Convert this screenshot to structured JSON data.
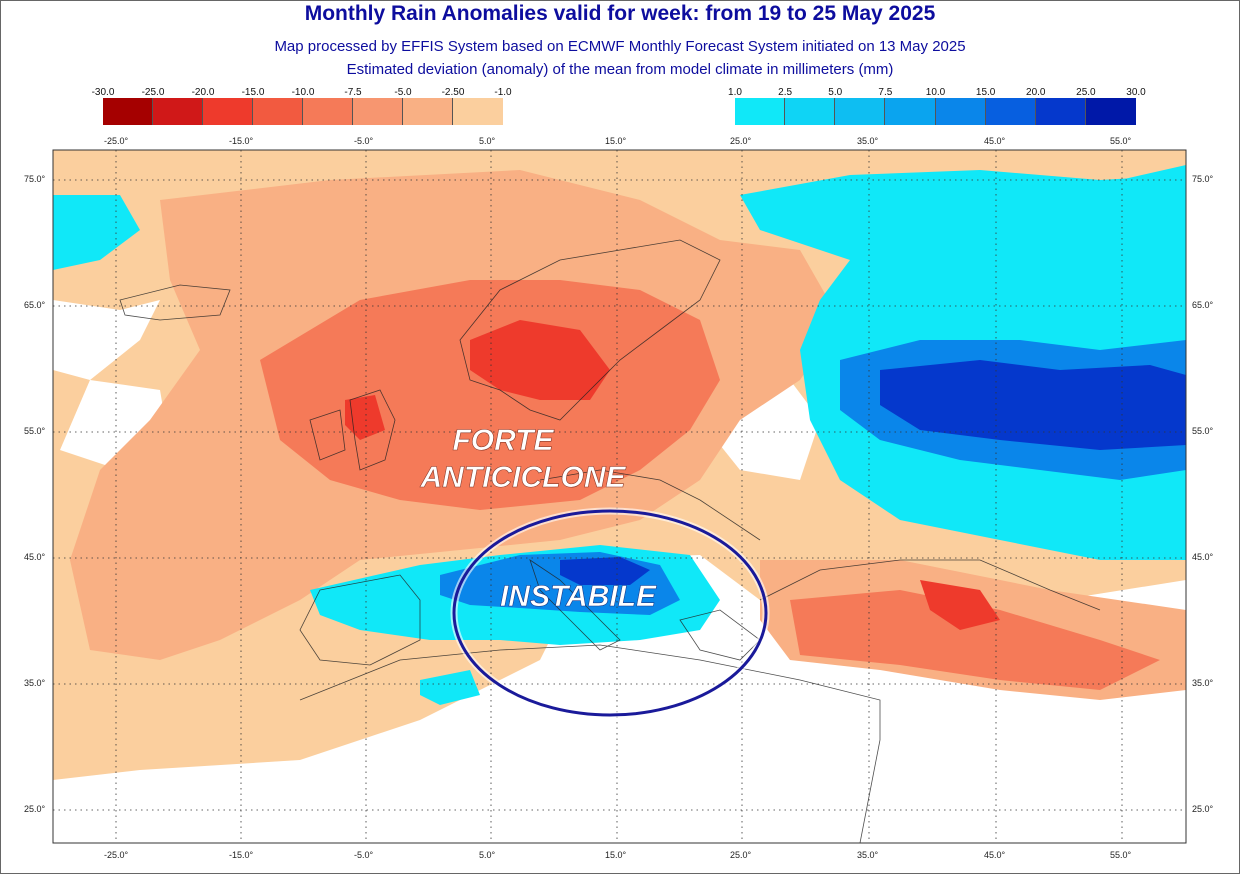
{
  "header": {
    "title": "Monthly Rain Anomalies valid for week: from 19 to 25 May 2025",
    "subtitle1": "Map processed by EFFIS System based on ECMWF Monthly Forecast System initiated on 13 May 2025",
    "subtitle2": "Estimated deviation (anomaly) of the mean from model climate in millimeters (mm)"
  },
  "legend_negative": {
    "labels": [
      "-30.0",
      "-25.0",
      "-20.0",
      "-15.0",
      "-10.0",
      "-7.5",
      "-5.0",
      "-2.50",
      "-1.0"
    ],
    "colors": [
      "#a50000",
      "#d01818",
      "#ee3a2c",
      "#f25a40",
      "#f57a58",
      "#f79670",
      "#f9b084",
      "#fbcf9e"
    ]
  },
  "legend_positive": {
    "labels": [
      "1.0",
      "2.5",
      "5.0",
      "7.5",
      "10.0",
      "15.0",
      "20.0",
      "25.0",
      "30.0"
    ],
    "colors": [
      "#10e8f8",
      "#0fd4f5",
      "#0ebef2",
      "#0aa4ef",
      "#0a86ea",
      "#075fe0",
      "#0538cc",
      "#0018a8"
    ]
  },
  "top_degree_labels": [
    "-25.0°",
    "-15.0°",
    "-5.0°",
    "5.0°",
    "15.0°",
    "25.0°",
    "35.0°",
    "45.0°",
    "55.0°"
  ],
  "axes": {
    "longitudes": [
      "-25.0°",
      "-15.0°",
      "-5.0°",
      "5.0°",
      "15.0°",
      "25.0°",
      "35.0°",
      "45.0°",
      "55.0°"
    ],
    "latitudes": [
      "75.0°",
      "65.0°",
      "55.0°",
      "45.0°",
      "35.0°",
      "25.0°"
    ]
  },
  "annotations": {
    "high_label_line1": "FORTE",
    "high_label_line2": "ANTICICLONE",
    "unstable_label": "INSTABILE"
  },
  "colors": {
    "title": "#0d0d9e",
    "ellipse": "#1a1a9a"
  }
}
